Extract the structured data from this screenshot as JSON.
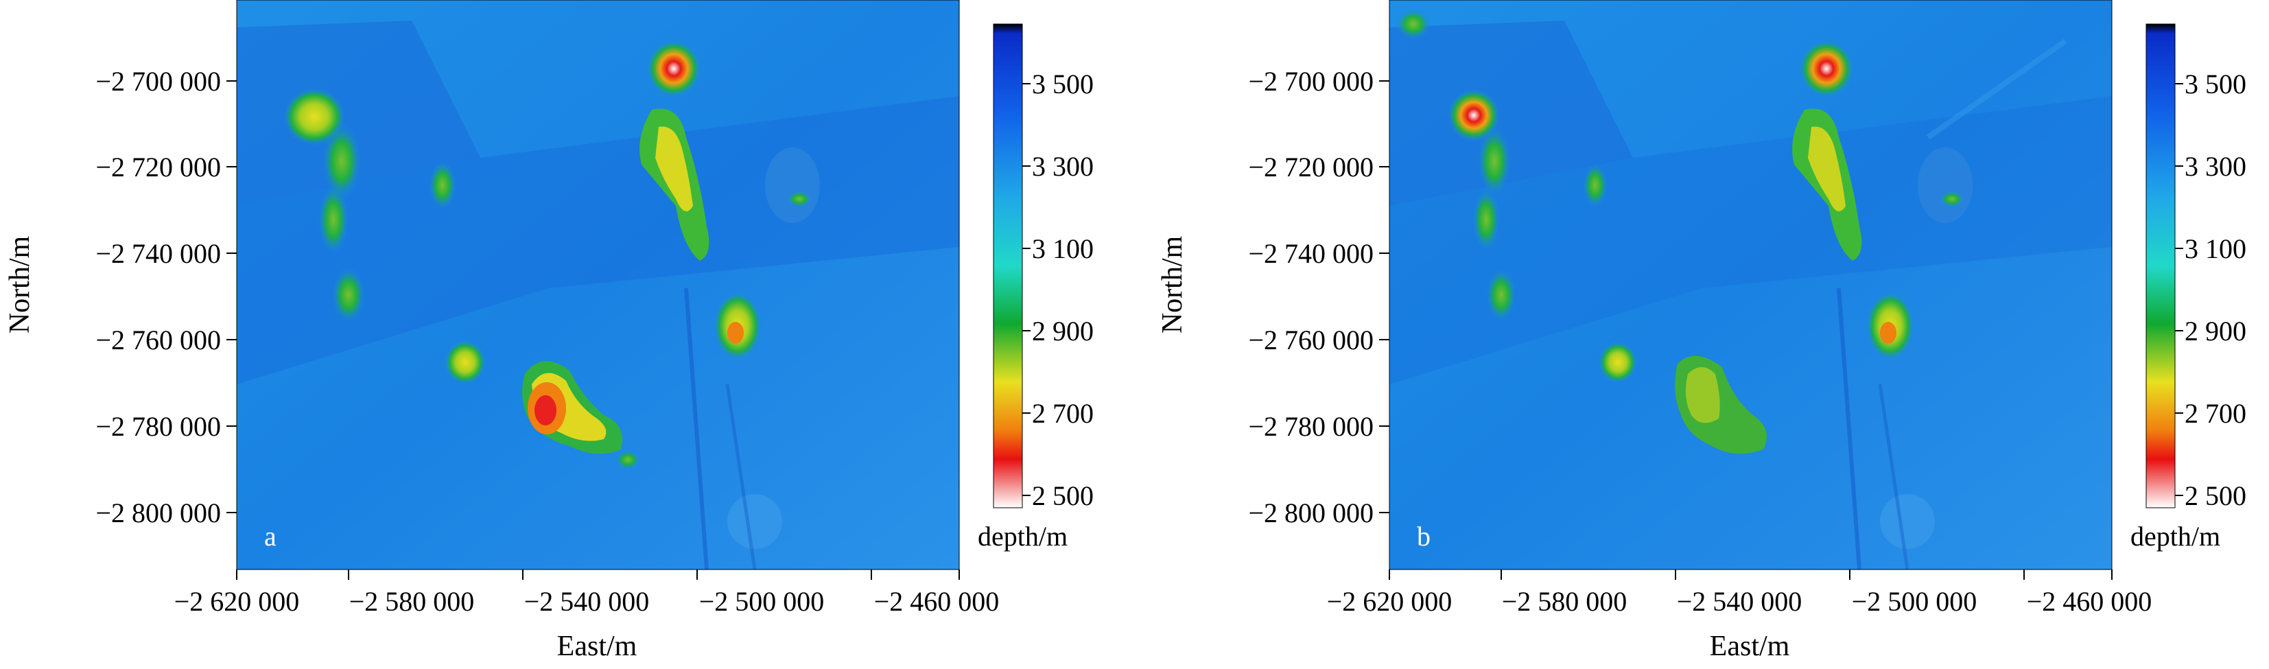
{
  "figure": {
    "x_axis_title": "East/m",
    "y_axis_title": "North/m",
    "colorbar_title": "depth/m",
    "x_ticks": [
      "−2 620 000",
      "−2 580 000",
      "−2 540 000",
      "−2 500 000",
      "−2 460 000"
    ],
    "y_ticks": [
      "−2 700 000",
      "−2 720 000",
      "−2 740 000",
      "−2 760 000",
      "−2 780 000",
      "−2 800 000"
    ],
    "colorbar_ticks": [
      "3 500",
      "3 300",
      "3 100",
      "2 900",
      "2 700",
      "2 500"
    ],
    "colors": {
      "deep": "#0a3fd0",
      "mid": "#1a8ae8",
      "shallow_green": "#1aa83a",
      "yellow": "#e6e020",
      "red": "#e82010",
      "white": "#ffffff"
    }
  },
  "panels": [
    {
      "label": "a"
    },
    {
      "label": "b"
    }
  ]
}
